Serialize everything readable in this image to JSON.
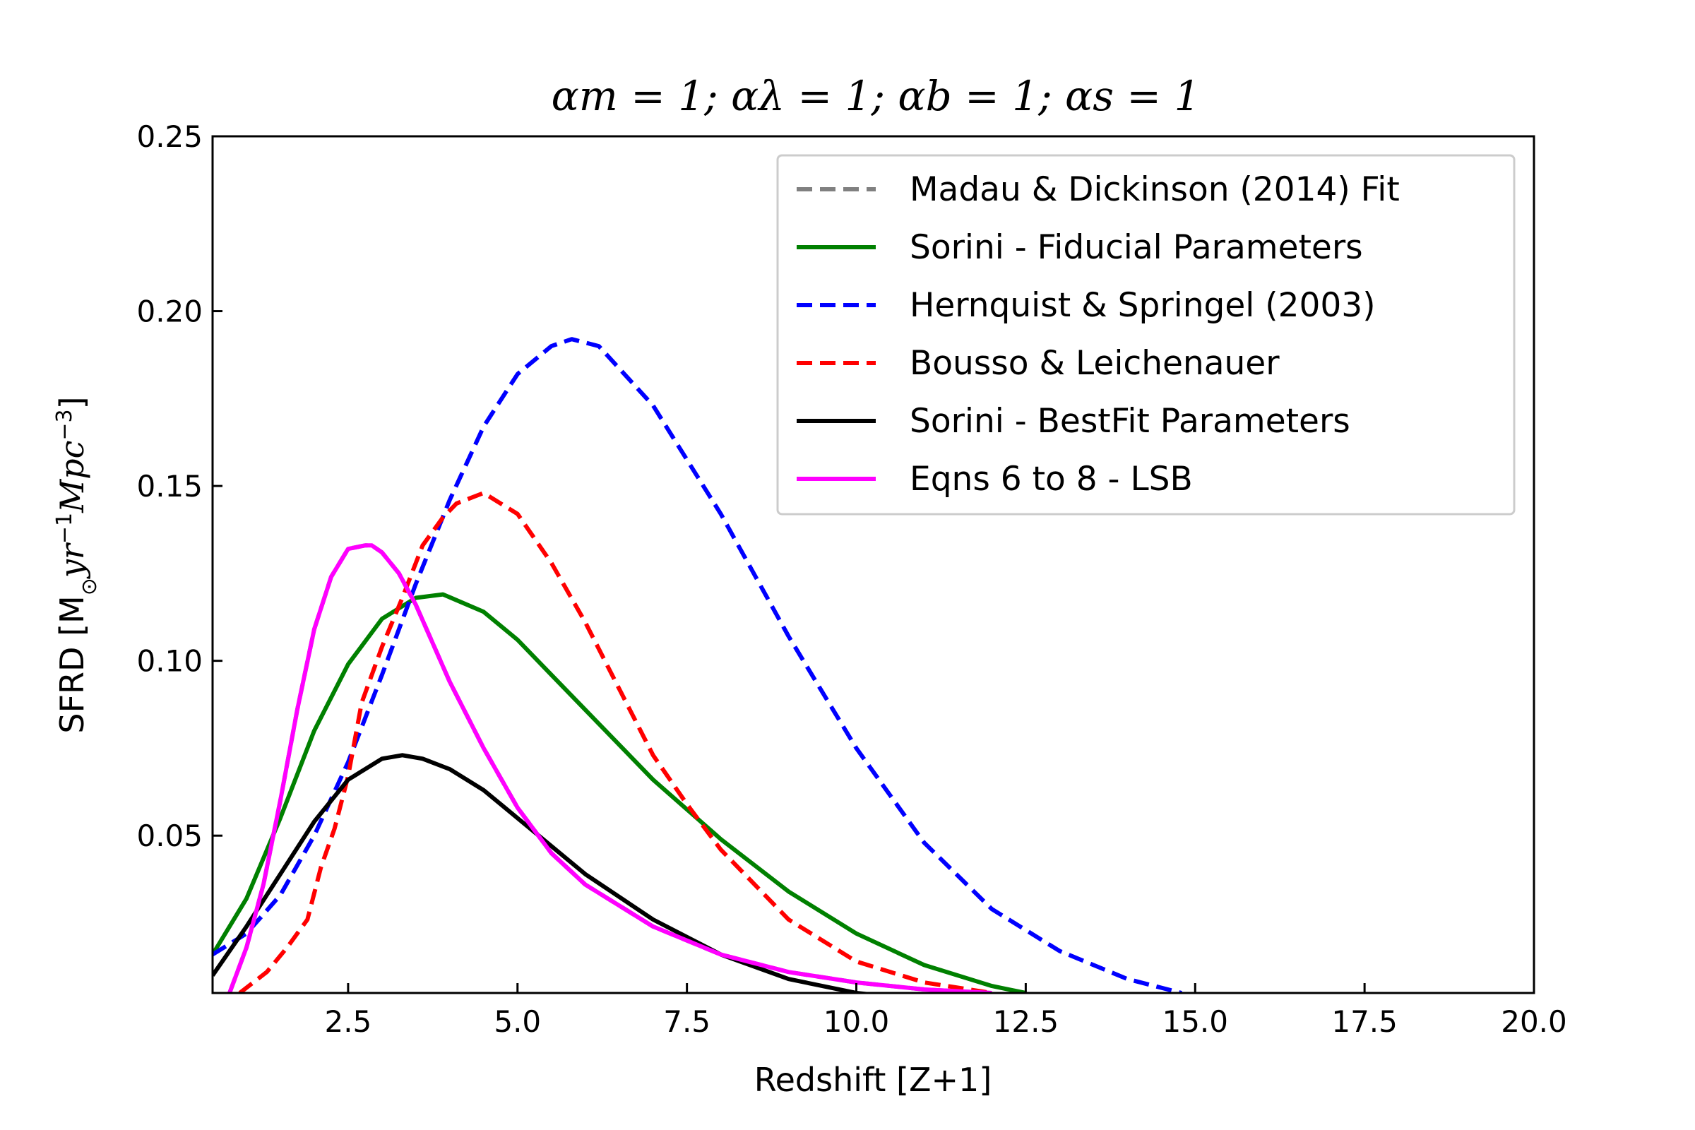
{
  "chart_data": {
    "type": "line",
    "title": "αm = 1; αλ = 1; αb = 1; αs = 1",
    "xlabel": "Redshift [Z+1]",
    "ylabel_main": "SFRD [M",
    "ylabel_sub": "⊙",
    "ylabel_rest": "yr",
    "ylabel_sup1": "−1",
    "ylabel_mpc": "Mpc",
    "ylabel_sup2": "−3",
    "ylabel_close": "]",
    "xlim": [
      0.5,
      20.0
    ],
    "ylim": [
      0.005,
      0.25
    ],
    "xticks": [
      2.5,
      5.0,
      7.5,
      10.0,
      12.5,
      15.0,
      17.5,
      20.0
    ],
    "xtick_labels": [
      "2.5",
      "5.0",
      "7.5",
      "10.0",
      "12.5",
      "15.0",
      "17.5",
      "20.0"
    ],
    "yticks": [
      0.05,
      0.1,
      0.15,
      0.2,
      0.25
    ],
    "ytick_labels": [
      "0.05",
      "0.10",
      "0.15",
      "0.20",
      "0.25"
    ],
    "grid": false,
    "legend_position": "top-right",
    "series": [
      {
        "name": "Madau & Dickinson (2014) Fit",
        "color": "#808080",
        "dash": true,
        "x": [
          0.75,
          1.0,
          1.25,
          1.5,
          1.75,
          2.0,
          2.25,
          2.5,
          2.75,
          2.85,
          3.0,
          3.25,
          3.5,
          3.75,
          4.0,
          4.5,
          5.0,
          5.5,
          6.0,
          7.0,
          8.0,
          9.0,
          10.0,
          11.0,
          12.0
        ],
        "y": [
          0.005,
          0.018,
          0.036,
          0.06,
          0.086,
          0.109,
          0.124,
          0.132,
          0.133,
          0.133,
          0.131,
          0.125,
          0.116,
          0.105,
          0.094,
          0.075,
          0.058,
          0.045,
          0.036,
          0.024,
          0.016,
          0.011,
          0.008,
          0.006,
          0.005
        ]
      },
      {
        "name": "Sorini - Fiducial Parameters",
        "color": "#008000",
        "dash": false,
        "x": [
          0.5,
          1.0,
          1.5,
          2.0,
          2.5,
          3.0,
          3.5,
          3.9,
          4.5,
          5.0,
          5.5,
          6.0,
          7.0,
          8.0,
          9.0,
          10.0,
          11.0,
          12.0,
          12.5
        ],
        "y": [
          0.016,
          0.032,
          0.055,
          0.08,
          0.099,
          0.112,
          0.118,
          0.119,
          0.114,
          0.106,
          0.096,
          0.086,
          0.066,
          0.049,
          0.034,
          0.022,
          0.013,
          0.007,
          0.005
        ]
      },
      {
        "name": "Hernquist & Springel (2003)",
        "color": "#0000ff",
        "dash": true,
        "x": [
          0.5,
          1.0,
          1.5,
          2.0,
          2.5,
          3.0,
          3.5,
          4.0,
          4.5,
          5.0,
          5.5,
          5.8,
          6.2,
          7.0,
          8.0,
          9.0,
          10.0,
          11.0,
          12.0,
          13.0,
          14.0,
          14.8
        ],
        "y": [
          0.016,
          0.022,
          0.033,
          0.05,
          0.071,
          0.096,
          0.122,
          0.146,
          0.167,
          0.182,
          0.19,
          0.192,
          0.19,
          0.173,
          0.142,
          0.107,
          0.075,
          0.048,
          0.029,
          0.017,
          0.009,
          0.005
        ]
      },
      {
        "name": "Bousso & Leichenauer",
        "color": "#ff0000",
        "dash": true,
        "x": [
          0.9,
          1.3,
          1.6,
          1.9,
          2.1,
          2.3,
          2.5,
          2.7,
          3.0,
          3.3,
          3.6,
          3.9,
          4.1,
          4.5,
          5.0,
          5.5,
          6.0,
          6.5,
          7.0,
          7.5,
          8.0,
          9.0,
          10.0,
          11.0,
          12.0
        ],
        "y": [
          0.005,
          0.011,
          0.018,
          0.026,
          0.041,
          0.052,
          0.067,
          0.088,
          0.104,
          0.118,
          0.133,
          0.141,
          0.145,
          0.148,
          0.142,
          0.128,
          0.111,
          0.092,
          0.073,
          0.059,
          0.046,
          0.026,
          0.014,
          0.008,
          0.005
        ]
      },
      {
        "name": "Sorini - BestFit Parameters",
        "color": "#000000",
        "dash": false,
        "x": [
          0.5,
          1.0,
          1.5,
          2.0,
          2.5,
          3.0,
          3.3,
          3.6,
          4.0,
          4.5,
          5.0,
          6.0,
          7.0,
          8.0,
          9.0,
          10.0,
          10.5
        ],
        "y": [
          0.01,
          0.024,
          0.039,
          0.054,
          0.066,
          0.072,
          0.073,
          0.072,
          0.069,
          0.063,
          0.055,
          0.039,
          0.026,
          0.016,
          0.009,
          0.005,
          0.004
        ]
      },
      {
        "name": "Eqns 6 to 8 - LSB",
        "color": "#ff00ff",
        "dash": false,
        "x": [
          0.75,
          1.0,
          1.25,
          1.5,
          1.75,
          2.0,
          2.25,
          2.5,
          2.75,
          2.85,
          3.0,
          3.25,
          3.5,
          3.75,
          4.0,
          4.5,
          5.0,
          5.5,
          6.0,
          7.0,
          8.0,
          9.0,
          10.0,
          11.0,
          12.0
        ],
        "y": [
          0.005,
          0.018,
          0.036,
          0.06,
          0.086,
          0.109,
          0.124,
          0.132,
          0.133,
          0.133,
          0.131,
          0.125,
          0.116,
          0.105,
          0.094,
          0.075,
          0.058,
          0.045,
          0.036,
          0.024,
          0.016,
          0.011,
          0.008,
          0.006,
          0.005
        ]
      }
    ]
  }
}
